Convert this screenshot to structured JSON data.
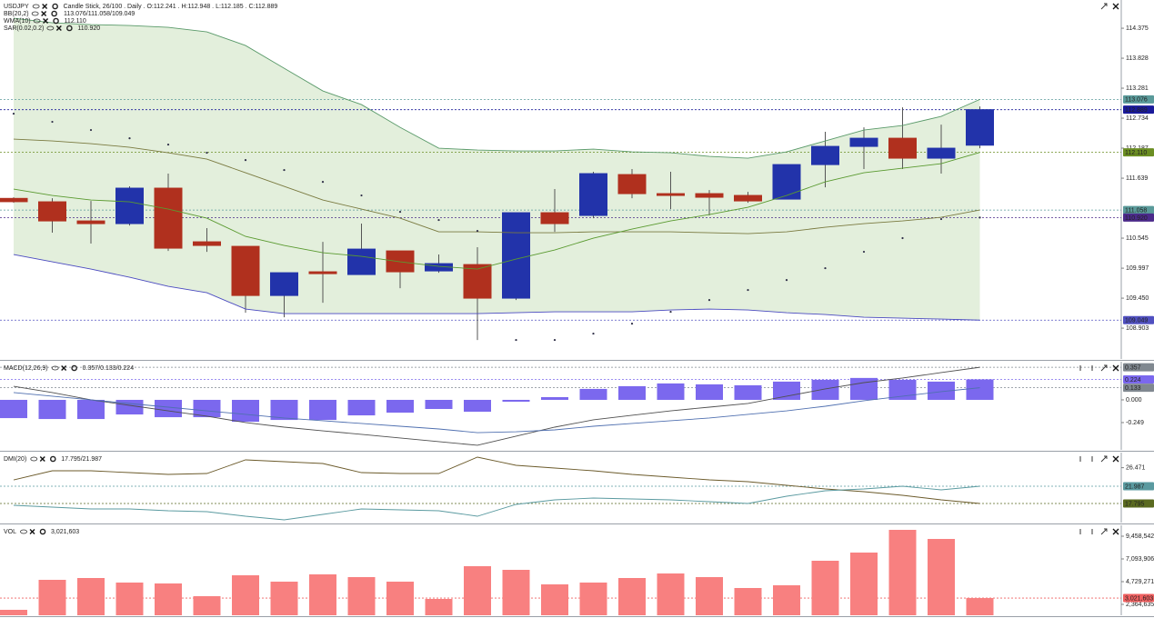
{
  "chart_data": [
    {
      "type": "candlestick",
      "title": "USDJPY",
      "subtitle": "Candle Stick, 26/100 . Daily . O:112.241 . H:112.948 . L:112.185 . C:112.889",
      "up_color": "#2233aa",
      "down_color": "#b0301e",
      "open": [
        111.27,
        111.208,
        110.859,
        110.81,
        111.457,
        110.478,
        110.395,
        109.499,
        109.931,
        109.881,
        110.312,
        109.947,
        110.063,
        109.45,
        111.009,
        110.959,
        111.705,
        111.357,
        111.357,
        111.324,
        111.257,
        111.887,
        112.219,
        112.368,
        112.004,
        112.241
      ],
      "high": [
        111.29,
        111.274,
        111.224,
        111.49,
        111.722,
        110.727,
        110.395,
        109.914,
        110.478,
        110.81,
        110.312,
        110.246,
        110.379,
        111.009,
        111.44,
        111.755,
        111.805,
        111.755,
        111.423,
        111.39,
        111.887,
        112.485,
        112.567,
        112.932,
        112.617,
        112.948
      ],
      "low": [
        111.19,
        110.644,
        110.445,
        110.776,
        110.312,
        110.295,
        109.184,
        109.101,
        109.367,
        109.881,
        109.632,
        109.914,
        108.687,
        109.416,
        110.66,
        110.909,
        111.274,
        111.075,
        110.959,
        111.191,
        111.257,
        111.473,
        111.805,
        111.805,
        111.722,
        112.185
      ],
      "close": [
        111.21,
        110.859,
        110.81,
        111.457,
        110.362,
        110.412,
        109.499,
        109.914,
        109.897,
        110.345,
        109.931,
        110.08,
        109.45,
        111.009,
        110.81,
        111.722,
        111.357,
        111.324,
        111.291,
        111.224,
        111.887,
        112.219,
        112.368,
        112.004,
        112.186,
        112.889
      ],
      "indicators": [
        {
          "name": "BB(20,2)",
          "readout": "113.076/111.058/109.049",
          "readout_color": "#4a8a8a",
          "fill": "#e3efdc",
          "lines": [
            {
              "color": "#5a9a6a",
              "values": [
                114.557,
                114.475,
                114.442,
                114.425,
                114.392,
                114.309,
                114.06,
                113.645,
                113.231,
                112.982,
                112.567,
                112.186,
                112.153,
                112.136,
                112.136,
                112.17,
                112.12,
                112.103,
                112.037,
                112.004,
                112.12,
                112.319,
                112.518,
                112.601,
                112.767,
                113.076
              ]
            },
            {
              "color": "#7a7a40",
              "values": [
                112.352,
                112.319,
                112.269,
                112.203,
                112.103,
                111.987,
                111.738,
                111.49,
                111.241,
                111.075,
                110.909,
                110.66,
                110.66,
                110.644,
                110.644,
                110.66,
                110.66,
                110.66,
                110.644,
                110.627,
                110.66,
                110.743,
                110.809,
                110.859,
                110.925,
                111.058
              ]
            },
            {
              "color": "#4a4ac0",
              "values": [
                110.246,
                110.113,
                109.98,
                109.831,
                109.665,
                109.549,
                109.251,
                109.168,
                109.168,
                109.168,
                109.168,
                109.168,
                109.168,
                109.184,
                109.201,
                109.201,
                109.201,
                109.234,
                109.251,
                109.234,
                109.184,
                109.151,
                109.101,
                109.085,
                109.068,
                109.049
              ]
            }
          ]
        },
        {
          "name": "WMA(10)",
          "readout": "112.110",
          "readout_color": "#5a9a30",
          "lines": [
            {
              "color": "#5a9a30",
              "values": [
                111.44,
                111.324,
                111.241,
                111.208,
                111.075,
                110.909,
                110.577,
                110.412,
                110.279,
                110.213,
                110.113,
                110.03,
                109.98,
                110.163,
                110.329,
                110.545,
                110.71,
                110.859,
                110.975,
                111.108,
                111.324,
                111.573,
                111.738,
                111.821,
                111.904,
                112.11
              ]
            }
          ]
        },
        {
          "name": "SAR(0.02,0.2)",
          "readout": "110.920",
          "readout_color": "#222222",
          "dots": {
            "color": "#303048",
            "values": [
              112.816,
              112.667,
              112.518,
              112.368,
              112.252,
              112.103,
              111.97,
              111.788,
              111.572,
              111.324,
              111.025,
              110.876,
              110.677,
              108.687,
              108.687,
              108.803,
              108.985,
              109.201,
              109.416,
              109.599,
              109.781,
              109.997,
              110.296,
              110.545,
              110.893,
              110.92
            ]
          }
        }
      ],
      "ylim": [
        108.34,
        114.89
      ],
      "yticks": [
        114.375,
        113.828,
        113.281,
        112.734,
        112.187,
        111.639,
        110.545,
        109.997,
        {
          "value": 109.45,
          "label": "109.450"
        },
        108.903
      ],
      "markers": [
        {
          "value": 113.076,
          "label": "113.076",
          "color": "#5a9a9a"
        },
        {
          "value": 112.889,
          "label": "112.889",
          "color": "#1a1a9a"
        },
        {
          "value": 112.11,
          "label": "112.110",
          "color": "#6b8e23"
        },
        {
          "value": 111.058,
          "label": "111.058",
          "color": "#5a9a9a"
        },
        {
          "value": 110.92,
          "label": "110.920",
          "color": "#4b2a8a"
        },
        {
          "value": 109.049,
          "label": "109.049",
          "color": "#5050c0"
        }
      ]
    },
    {
      "type": "bar",
      "title": "MACD(12,26,9)",
      "readout": "0.357/0.133/0.224",
      "readout_color": "#6a7ab0",
      "color": "#7b68ee",
      "values": [
        -0.2,
        -0.21,
        -0.21,
        -0.16,
        -0.19,
        -0.19,
        -0.24,
        -0.22,
        -0.22,
        -0.17,
        -0.14,
        -0.1,
        -0.13,
        -0.02,
        0.03,
        0.12,
        0.15,
        0.18,
        0.17,
        0.16,
        0.2,
        0.22,
        0.24,
        0.22,
        0.2,
        0.224
      ],
      "lines": [
        {
          "color": "#505050",
          "values": [
            0.149,
            0.08,
            0,
            -0.06,
            -0.12,
            -0.179,
            -0.249,
            -0.299,
            -0.339,
            -0.378,
            -0.418,
            -0.458,
            -0.498,
            -0.398,
            -0.299,
            -0.219,
            -0.169,
            -0.12,
            -0.08,
            -0.04,
            0.04,
            0.12,
            0.189,
            0.239,
            0.299,
            0.357
          ]
        },
        {
          "color": "#5070b0",
          "values": [
            0.08,
            0.04,
            0,
            -0.04,
            -0.08,
            -0.12,
            -0.159,
            -0.199,
            -0.229,
            -0.259,
            -0.289,
            -0.319,
            -0.359,
            -0.349,
            -0.329,
            -0.289,
            -0.259,
            -0.229,
            -0.199,
            -0.159,
            -0.12,
            -0.07,
            -0.01,
            0.04,
            0.09,
            0.133
          ]
        }
      ],
      "ylim": [
        -0.548,
        0.418
      ],
      "yticks": [
        {
          "value": 0,
          "label": "0.000"
        },
        -0.249
      ],
      "markers": [
        {
          "value": 0.357,
          "label": "0.357",
          "color": "#808890"
        },
        {
          "value": 0.224,
          "label": "0.224",
          "color": "#7b68ee"
        },
        {
          "value": 0.133,
          "label": "0.133",
          "color": "#808890"
        }
      ]
    },
    {
      "type": "line",
      "title": "DMI(20)",
      "readout": "17.795/21.987",
      "readout_color": "#5a9aa0",
      "series": [
        {
          "color": "#6b5a2a",
          "values": [
            23.532,
            25.74,
            25.74,
            25.298,
            24.857,
            25.077,
            28.389,
            27.947,
            27.506,
            25.298,
            25.077,
            25.077,
            29.051,
            27.064,
            26.402,
            25.74,
            24.857,
            24.195,
            23.532,
            23.091,
            22.208,
            21.325,
            20.662,
            19.78,
            18.676,
            17.795
          ]
        },
        {
          "color": "#5a9aa0",
          "values": [
            17.351,
            16.91,
            16.468,
            16.468,
            16.027,
            15.806,
            14.702,
            13.819,
            15.144,
            16.468,
            16.248,
            16.027,
            14.702,
            17.572,
            18.676,
            19.117,
            18.896,
            18.676,
            18.234,
            17.793,
            19.559,
            20.883,
            21.325,
            21.987,
            21.104,
            21.987
          ]
        }
      ],
      "ylim": [
        13.157,
        30.155
      ],
      "yticks": [
        26.471
      ],
      "markers": [
        {
          "value": 21.987,
          "label": "21.987",
          "color": "#5a9aa0"
        },
        {
          "value": 17.795,
          "label": "17.795",
          "color": "#5a6a20"
        }
      ]
    },
    {
      "type": "bar",
      "title": "VOL",
      "readout": "3,021,603",
      "readout_color": "#f06060",
      "color": "#f88080",
      "values": [
        1797115,
        4918420,
        5107590,
        4634665,
        4540080,
        3215890,
        5391345,
        4729250,
        5485930,
        5202175,
        4729250,
        2932135,
        6337195,
        5958855,
        4445495,
        4634665,
        5107590,
        5580515,
        5202175,
        4067155,
        4350910,
        6904705,
        7755970,
        10120595,
        9174745,
        3021603
      ],
      "ylim": [
        1229605,
        10593520
      ],
      "yticks": [
        {
          "value": 9458542,
          "label": "9,458,542"
        },
        {
          "value": 7093906,
          "label": "7,093,906"
        },
        {
          "value": 4729271,
          "label": "4,729,271"
        },
        {
          "value": 2364635,
          "label": "2,364,635"
        }
      ],
      "markers": [
        {
          "value": 3021603,
          "label": "3,021,603",
          "color": "#f06060"
        }
      ]
    }
  ]
}
